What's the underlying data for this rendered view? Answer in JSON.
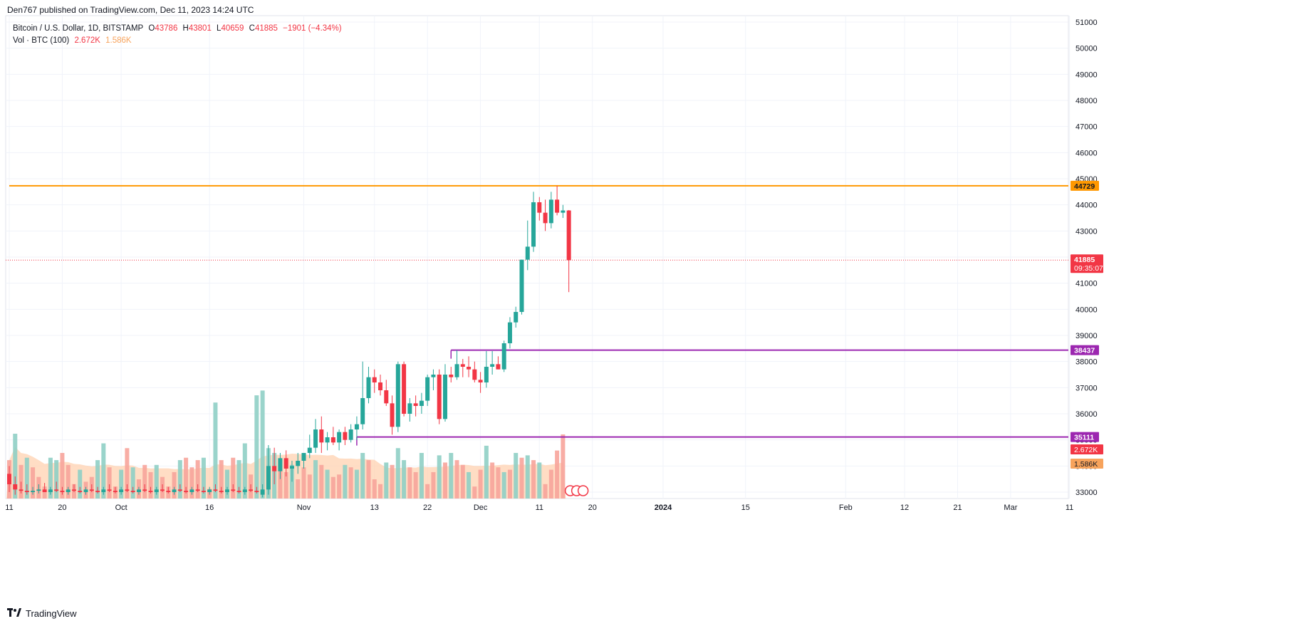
{
  "header": {
    "published_text": "Den767 published on TradingView.com, Dec 11, 2023 14:24 UTC"
  },
  "legend": {
    "symbol": "Bitcoin / U.S. Dollar, 1D, BITSTAMP",
    "open_label": "O",
    "open": "43786",
    "high_label": "H",
    "high": "43801",
    "low_label": "L",
    "low": "40659",
    "close_label": "C",
    "close": "41885",
    "change": "−1901 (−4.34%)",
    "volume_label": "Vol · BTC (100)",
    "volume_value": "2.672K",
    "volume_ma": "1.586K"
  },
  "footer": {
    "brand": "TradingView"
  },
  "colors": {
    "up": "#26a69a",
    "down": "#f23645",
    "vol_up": "#8fcfc5",
    "vol_down": "#f7a49b",
    "vol_ma_fill": "#ffd2b0",
    "resistance": "#ff9800",
    "support": "#9c27b0",
    "current": "#f23645",
    "grid": "#f0f3fa"
  },
  "chart_data": {
    "type": "candlestick",
    "symbol": "Bitcoin / U.S. Dollar",
    "interval": "1D",
    "exchange": "BITSTAMP",
    "ylim": [
      32800,
      51300
    ],
    "y_ticks": [
      "33000",
      "34000",
      "35000",
      "36000",
      "37000",
      "38000",
      "39000",
      "40000",
      "41000",
      "42000",
      "43000",
      "44000",
      "45000",
      "46000",
      "47000",
      "48000",
      "49000",
      "50000",
      "51000"
    ],
    "x_tick_labels": [
      {
        "label": "11",
        "index": 0
      },
      {
        "label": "20",
        "index": 9
      },
      {
        "label": "Oct",
        "index": 19
      },
      {
        "label": "16",
        "index": 34
      },
      {
        "label": "Nov",
        "index": 50
      },
      {
        "label": "13",
        "index": 62
      },
      {
        "label": "22",
        "index": 71
      },
      {
        "label": "Dec",
        "index": 80
      },
      {
        "label": "11",
        "index": 90
      },
      {
        "label": "20",
        "index": 99
      },
      {
        "label": "2024",
        "index": 111
      },
      {
        "label": "15",
        "index": 125
      },
      {
        "label": "Feb",
        "index": 142
      },
      {
        "label": "12",
        "index": 152
      },
      {
        "label": "21",
        "index": 161
      },
      {
        "label": "Mar",
        "index": 170
      },
      {
        "label": "11",
        "index": 180
      }
    ],
    "candles": [
      {
        "o": 33700,
        "h": 34000,
        "l": 33000,
        "c": 33300
      },
      {
        "o": 33300,
        "h": 33600,
        "l": 32900,
        "c": 33100
      },
      {
        "o": 33100,
        "h": 33400,
        "l": 32950,
        "c": 33050
      },
      {
        "o": 33050,
        "h": 33300,
        "l": 32900,
        "c": 33000
      },
      {
        "o": 33000,
        "h": 33200,
        "l": 32900,
        "c": 33050
      },
      {
        "o": 33050,
        "h": 33300,
        "l": 32950,
        "c": 33100
      },
      {
        "o": 33100,
        "h": 33350,
        "l": 33000,
        "c": 33000
      },
      {
        "o": 33000,
        "h": 33200,
        "l": 32900,
        "c": 33100
      },
      {
        "o": 33100,
        "h": 33400,
        "l": 33000,
        "c": 33050
      },
      {
        "o": 33050,
        "h": 33200,
        "l": 32900,
        "c": 33000
      },
      {
        "o": 33000,
        "h": 33200,
        "l": 32900,
        "c": 33100
      },
      {
        "o": 33100,
        "h": 33300,
        "l": 33000,
        "c": 33050
      },
      {
        "o": 33050,
        "h": 33200,
        "l": 32950,
        "c": 33000
      },
      {
        "o": 33000,
        "h": 33200,
        "l": 32900,
        "c": 33100
      },
      {
        "o": 33100,
        "h": 33300,
        "l": 33000,
        "c": 33050
      },
      {
        "o": 33050,
        "h": 33200,
        "l": 32950,
        "c": 33000
      },
      {
        "o": 33000,
        "h": 33200,
        "l": 32900,
        "c": 33100
      },
      {
        "o": 33100,
        "h": 33300,
        "l": 33000,
        "c": 33050
      },
      {
        "o": 33050,
        "h": 33200,
        "l": 32950,
        "c": 33000
      },
      {
        "o": 33000,
        "h": 33200,
        "l": 32900,
        "c": 33100
      },
      {
        "o": 33100,
        "h": 33300,
        "l": 33000,
        "c": 33050
      },
      {
        "o": 33050,
        "h": 33200,
        "l": 32950,
        "c": 33000
      },
      {
        "o": 33000,
        "h": 33200,
        "l": 32900,
        "c": 33100
      },
      {
        "o": 33100,
        "h": 33300,
        "l": 33000,
        "c": 33050
      },
      {
        "o": 33050,
        "h": 33200,
        "l": 32950,
        "c": 33000
      },
      {
        "o": 33000,
        "h": 33200,
        "l": 32900,
        "c": 33100
      },
      {
        "o": 33100,
        "h": 33300,
        "l": 33000,
        "c": 33050
      },
      {
        "o": 33050,
        "h": 33200,
        "l": 32950,
        "c": 33000
      },
      {
        "o": 33000,
        "h": 33200,
        "l": 32900,
        "c": 33100
      },
      {
        "o": 33100,
        "h": 33300,
        "l": 33000,
        "c": 33050
      },
      {
        "o": 33050,
        "h": 33200,
        "l": 32950,
        "c": 33000
      },
      {
        "o": 33000,
        "h": 33200,
        "l": 32900,
        "c": 33100
      },
      {
        "o": 33100,
        "h": 33300,
        "l": 33000,
        "c": 33050
      },
      {
        "o": 33050,
        "h": 33200,
        "l": 32950,
        "c": 33000
      },
      {
        "o": 33000,
        "h": 33200,
        "l": 32900,
        "c": 33100
      },
      {
        "o": 33100,
        "h": 33300,
        "l": 33000,
        "c": 33050
      },
      {
        "o": 33050,
        "h": 33200,
        "l": 32950,
        "c": 33000
      },
      {
        "o": 33000,
        "h": 33200,
        "l": 32900,
        "c": 33100
      },
      {
        "o": 33100,
        "h": 33300,
        "l": 33000,
        "c": 33050
      },
      {
        "o": 33050,
        "h": 33200,
        "l": 32950,
        "c": 33000
      },
      {
        "o": 33000,
        "h": 33200,
        "l": 32900,
        "c": 33100
      },
      {
        "o": 33100,
        "h": 33300,
        "l": 33000,
        "c": 33050
      },
      {
        "o": 33050,
        "h": 33200,
        "l": 32950,
        "c": 33000
      },
      {
        "o": 32900,
        "h": 33300,
        "l": 32800,
        "c": 33100
      },
      {
        "o": 33100,
        "h": 34800,
        "l": 32900,
        "c": 34000
      },
      {
        "o": 34000,
        "h": 34700,
        "l": 33300,
        "c": 33800
      },
      {
        "o": 33800,
        "h": 34500,
        "l": 33500,
        "c": 34300
      },
      {
        "o": 34300,
        "h": 34600,
        "l": 33600,
        "c": 33900
      },
      {
        "o": 33900,
        "h": 34200,
        "l": 33400,
        "c": 34000
      },
      {
        "o": 34000,
        "h": 34500,
        "l": 33700,
        "c": 34200
      },
      {
        "o": 34200,
        "h": 34500,
        "l": 33900,
        "c": 34500
      },
      {
        "o": 34500,
        "h": 35200,
        "l": 34300,
        "c": 34700
      },
      {
        "o": 34700,
        "h": 35800,
        "l": 34500,
        "c": 35400
      },
      {
        "o": 35400,
        "h": 35900,
        "l": 34500,
        "c": 34900
      },
      {
        "o": 34900,
        "h": 35300,
        "l": 34600,
        "c": 35100
      },
      {
        "o": 35100,
        "h": 35500,
        "l": 34800,
        "c": 34900
      },
      {
        "o": 34900,
        "h": 35400,
        "l": 34600,
        "c": 35300
      },
      {
        "o": 35300,
        "h": 35500,
        "l": 34800,
        "c": 35000
      },
      {
        "o": 35000,
        "h": 35600,
        "l": 34900,
        "c": 35400
      },
      {
        "o": 35400,
        "h": 35900,
        "l": 35000,
        "c": 35600
      },
      {
        "o": 35600,
        "h": 38000,
        "l": 35400,
        "c": 36600
      },
      {
        "o": 36600,
        "h": 37800,
        "l": 36400,
        "c": 37400
      },
      {
        "o": 37400,
        "h": 37700,
        "l": 36800,
        "c": 37200
      },
      {
        "o": 37200,
        "h": 37500,
        "l": 36700,
        "c": 36900
      },
      {
        "o": 36900,
        "h": 37300,
        "l": 36300,
        "c": 36400
      },
      {
        "o": 36400,
        "h": 36700,
        "l": 35200,
        "c": 35500
      },
      {
        "o": 35500,
        "h": 38000,
        "l": 35300,
        "c": 37900
      },
      {
        "o": 37900,
        "h": 38000,
        "l": 35900,
        "c": 36000
      },
      {
        "o": 36000,
        "h": 36600,
        "l": 35700,
        "c": 36400
      },
      {
        "o": 36400,
        "h": 36700,
        "l": 35900,
        "c": 36300
      },
      {
        "o": 36300,
        "h": 36800,
        "l": 36000,
        "c": 36500
      },
      {
        "o": 36500,
        "h": 37500,
        "l": 36300,
        "c": 37400
      },
      {
        "o": 37400,
        "h": 37700,
        "l": 36900,
        "c": 37500
      },
      {
        "o": 37500,
        "h": 37700,
        "l": 35600,
        "c": 35800
      },
      {
        "o": 35800,
        "h": 37900,
        "l": 35700,
        "c": 37500
      },
      {
        "o": 37500,
        "h": 37800,
        "l": 37200,
        "c": 37400
      },
      {
        "o": 37400,
        "h": 38437,
        "l": 37300,
        "c": 37900
      },
      {
        "o": 37900,
        "h": 38100,
        "l": 37400,
        "c": 37800
      },
      {
        "o": 37800,
        "h": 38200,
        "l": 37400,
        "c": 37700
      },
      {
        "o": 37700,
        "h": 38000,
        "l": 37200,
        "c": 37300
      },
      {
        "o": 37300,
        "h": 37600,
        "l": 36800,
        "c": 37200
      },
      {
        "o": 37200,
        "h": 38400,
        "l": 37000,
        "c": 37800
      },
      {
        "o": 37800,
        "h": 38400,
        "l": 37500,
        "c": 37900
      },
      {
        "o": 37900,
        "h": 38200,
        "l": 37700,
        "c": 37700
      },
      {
        "o": 37700,
        "h": 38800,
        "l": 37600,
        "c": 38700
      },
      {
        "o": 38700,
        "h": 39700,
        "l": 38500,
        "c": 39500
      },
      {
        "o": 39500,
        "h": 40100,
        "l": 39300,
        "c": 39900
      },
      {
        "o": 39900,
        "h": 41900,
        "l": 39800,
        "c": 41900
      },
      {
        "o": 41900,
        "h": 43400,
        "l": 41500,
        "c": 42400
      },
      {
        "o": 42400,
        "h": 44500,
        "l": 42200,
        "c": 44100
      },
      {
        "o": 44100,
        "h": 44300,
        "l": 43400,
        "c": 43700
      },
      {
        "o": 43700,
        "h": 44200,
        "l": 43000,
        "c": 43300
      },
      {
        "o": 43300,
        "h": 44500,
        "l": 43100,
        "c": 44200
      },
      {
        "o": 44200,
        "h": 44729,
        "l": 43600,
        "c": 43700
      },
      {
        "o": 43700,
        "h": 44000,
        "l": 43500,
        "c": 43786
      },
      {
        "o": 43786,
        "h": 43801,
        "l": 40659,
        "c": 41885
      }
    ],
    "volumes": [
      {
        "v": 1.6,
        "up": false
      },
      {
        "v": 2.7,
        "up": true
      },
      {
        "v": 1.4,
        "up": false
      },
      {
        "v": 1.7,
        "up": true
      },
      {
        "v": 1.3,
        "up": false
      },
      {
        "v": 0.9,
        "up": false
      },
      {
        "v": 0.5,
        "up": false
      },
      {
        "v": 1.7,
        "up": true
      },
      {
        "v": 1.6,
        "up": true
      },
      {
        "v": 1.9,
        "up": false
      },
      {
        "v": 1.4,
        "up": false
      },
      {
        "v": 0.6,
        "up": false
      },
      {
        "v": 1.2,
        "up": true
      },
      {
        "v": 0.7,
        "up": false
      },
      {
        "v": 0.9,
        "up": false
      },
      {
        "v": 1.6,
        "up": true
      },
      {
        "v": 2.3,
        "up": true
      },
      {
        "v": 1.3,
        "up": false
      },
      {
        "v": 0.5,
        "up": false
      },
      {
        "v": 1.2,
        "up": true
      },
      {
        "v": 2.1,
        "up": false
      },
      {
        "v": 1.3,
        "up": true
      },
      {
        "v": 0.8,
        "up": false
      },
      {
        "v": 1.4,
        "up": false
      },
      {
        "v": 1.1,
        "up": false
      },
      {
        "v": 1.4,
        "up": true
      },
      {
        "v": 0.9,
        "up": false
      },
      {
        "v": 0.5,
        "up": false
      },
      {
        "v": 1.1,
        "up": false
      },
      {
        "v": 1.6,
        "up": true
      },
      {
        "v": 1.7,
        "up": false
      },
      {
        "v": 1.3,
        "up": false
      },
      {
        "v": 1.6,
        "up": false
      },
      {
        "v": 1.7,
        "up": true
      },
      {
        "v": 0.4,
        "up": false
      },
      {
        "v": 4.0,
        "up": true
      },
      {
        "v": 1.6,
        "up": false
      },
      {
        "v": 1.2,
        "up": true
      },
      {
        "v": 1.7,
        "up": false
      },
      {
        "v": 1.6,
        "up": true
      },
      {
        "v": 2.3,
        "up": true
      },
      {
        "v": 1.0,
        "up": false
      },
      {
        "v": 4.3,
        "up": true
      },
      {
        "v": 4.5,
        "up": true
      },
      {
        "v": 2.1,
        "up": true
      },
      {
        "v": 1.9,
        "up": true
      },
      {
        "v": 1.2,
        "up": false
      },
      {
        "v": 1.1,
        "up": false
      },
      {
        "v": 1.4,
        "up": true
      },
      {
        "v": 0.8,
        "up": false
      },
      {
        "v": 1.3,
        "up": false
      },
      {
        "v": 1.0,
        "up": false
      },
      {
        "v": 1.6,
        "up": true
      },
      {
        "v": 1.4,
        "up": false
      },
      {
        "v": 1.2,
        "up": true
      },
      {
        "v": 0.9,
        "up": false
      },
      {
        "v": 1.0,
        "up": false
      },
      {
        "v": 1.4,
        "up": true
      },
      {
        "v": 1.3,
        "up": false
      },
      {
        "v": 1.2,
        "up": true
      },
      {
        "v": 1.9,
        "up": true
      },
      {
        "v": 1.6,
        "up": false
      },
      {
        "v": 0.8,
        "up": false
      },
      {
        "v": 0.6,
        "up": false
      },
      {
        "v": 1.5,
        "up": true
      },
      {
        "v": 1.4,
        "up": false
      },
      {
        "v": 2.1,
        "up": true
      },
      {
        "v": 1.6,
        "up": true
      },
      {
        "v": 1.3,
        "up": false
      },
      {
        "v": 1.1,
        "up": false
      },
      {
        "v": 1.9,
        "up": true
      },
      {
        "v": 0.6,
        "up": false
      },
      {
        "v": 1.1,
        "up": false
      },
      {
        "v": 1.8,
        "up": true
      },
      {
        "v": 1.5,
        "up": false
      },
      {
        "v": 1.9,
        "up": true
      },
      {
        "v": 1.6,
        "up": false
      },
      {
        "v": 1.4,
        "up": false
      },
      {
        "v": 1.1,
        "up": true
      },
      {
        "v": 0.5,
        "up": false
      },
      {
        "v": 1.2,
        "up": false
      },
      {
        "v": 2.2,
        "up": true
      },
      {
        "v": 1.5,
        "up": false
      },
      {
        "v": 1.3,
        "up": false
      },
      {
        "v": 1.1,
        "up": true
      },
      {
        "v": 1.2,
        "up": false
      },
      {
        "v": 1.9,
        "up": true
      },
      {
        "v": 1.7,
        "up": false
      },
      {
        "v": 1.8,
        "up": true
      },
      {
        "v": 1.6,
        "up": false
      },
      {
        "v": 1.5,
        "up": true
      },
      {
        "v": 0.6,
        "up": false
      },
      {
        "v": 1.2,
        "up": false
      },
      {
        "v": 2.0,
        "up": false
      },
      {
        "v": 2.672,
        "up": false
      }
    ],
    "volume_scale_max": 4.6,
    "horizontal_lines": [
      {
        "value": 44729,
        "label": "44729",
        "color": "#ff9800",
        "start_index": 0
      },
      {
        "value": 38437,
        "label": "38437",
        "color": "#9c27b0",
        "start_index": 75
      },
      {
        "value": 35111,
        "label": "35111",
        "color": "#9c27b0",
        "start_index": 59
      }
    ],
    "current_price": {
      "value": 41885,
      "label": "41885",
      "countdown": "09:35:07"
    },
    "volume_labels": [
      {
        "label": "2.672K",
        "color": "#f23645"
      },
      {
        "label": "1.586K",
        "color": "#f7a35c"
      }
    ]
  }
}
